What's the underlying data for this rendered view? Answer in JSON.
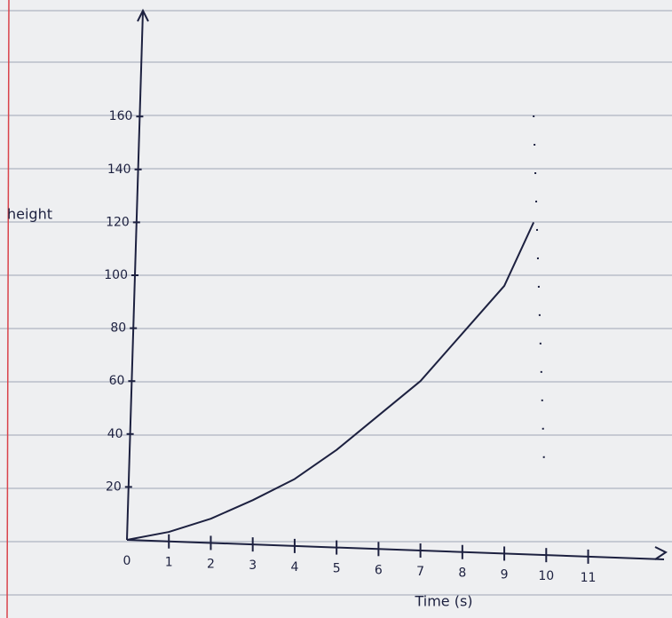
{
  "chart_data": {
    "type": "line",
    "x_label": "Time (s)",
    "y_label": "height",
    "x": [
      0,
      1,
      2,
      3,
      4,
      5,
      6,
      7,
      8,
      9,
      9.7
    ],
    "series": [
      {
        "color": "#1d2140",
        "values": [
          0,
          3,
          8,
          15,
          23,
          34,
          47,
          60,
          78,
          96,
          120
        ]
      }
    ],
    "xlim": [
      0,
      13
    ],
    "ylim": [
      0,
      200
    ],
    "xticks": [
      0,
      1,
      2,
      3,
      4,
      5,
      6,
      7,
      8,
      9,
      10,
      11
    ],
    "yticks": [
      20,
      40,
      60,
      80,
      100,
      120,
      140,
      160
    ],
    "vline_x": 9.7
  }
}
